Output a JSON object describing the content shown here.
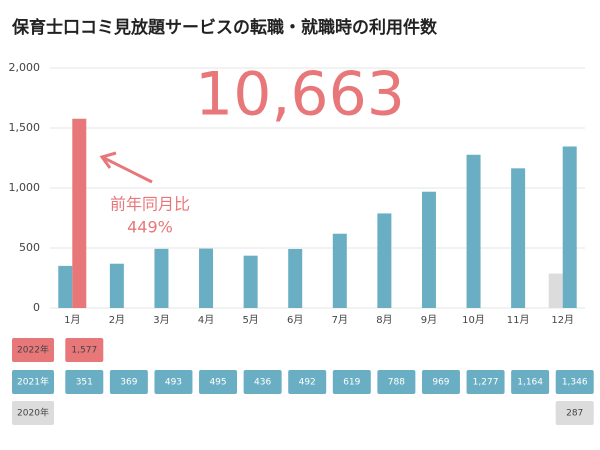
{
  "chart_data": {
    "type": "bar",
    "title": "保育士口コミ見放題サービスの転職・就職時の利用件数",
    "total_label": "10,663",
    "annotation": [
      "前年同月比",
      "449%"
    ],
    "categories": [
      "1月",
      "2月",
      "3月",
      "4月",
      "5月",
      "6月",
      "7月",
      "8月",
      "9月",
      "10月",
      "11月",
      "12月"
    ],
    "series": [
      {
        "name": "2022年",
        "color": "#e8777a",
        "values": [
          1577,
          null,
          null,
          null,
          null,
          null,
          null,
          null,
          null,
          null,
          null,
          null
        ],
        "value_labels": [
          "1,577",
          null,
          null,
          null,
          null,
          null,
          null,
          null,
          null,
          null,
          null,
          null
        ]
      },
      {
        "name": "2021年",
        "color": "#6aaec4",
        "values": [
          351,
          369,
          493,
          495,
          436,
          492,
          619,
          788,
          969,
          1277,
          1164,
          1346
        ],
        "value_labels": [
          "351",
          "369",
          "493",
          "495",
          "436",
          "492",
          "619",
          "788",
          "969",
          "1,277",
          "1,164",
          "1,346"
        ]
      },
      {
        "name": "2020年",
        "color": "#dcdcdc",
        "values": [
          null,
          null,
          null,
          null,
          null,
          null,
          null,
          null,
          null,
          null,
          null,
          287
        ],
        "value_labels": [
          null,
          null,
          null,
          null,
          null,
          null,
          null,
          null,
          null,
          null,
          null,
          "287"
        ]
      }
    ],
    "ylim": [
      0,
      2000
    ],
    "yticks": [
      0,
      500,
      {
        "value": 1000,
        "label": "1,000"
      },
      {
        "value": 1500,
        "label": "1,500"
      },
      {
        "value": 2000,
        "label": "2,000"
      }
    ],
    "grid": true
  }
}
